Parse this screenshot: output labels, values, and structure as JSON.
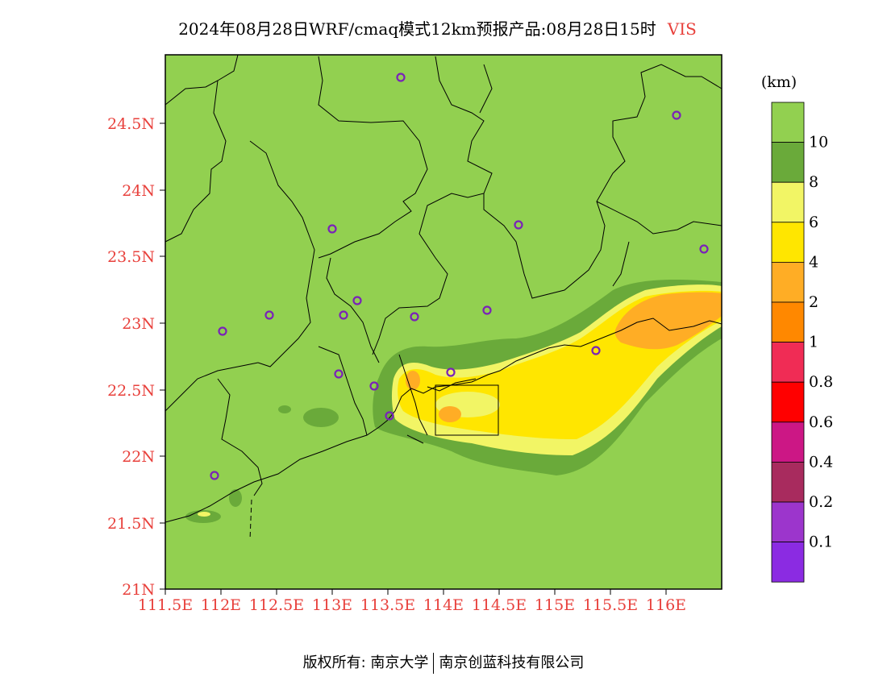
{
  "title": {
    "main": "2024年08月28日WRF/cmaq模式12km预报产品:08月28日15时",
    "variable": "VIS"
  },
  "axes": {
    "lat_ticks": [
      "24.5N",
      "24N",
      "23.5N",
      "23N",
      "22.5N",
      "22N",
      "21.5N",
      "21N"
    ],
    "lon_ticks": [
      "111.5E",
      "112E",
      "112.5E",
      "113E",
      "113.5E",
      "114E",
      "114.5E",
      "115E",
      "115.5E",
      "116E"
    ]
  },
  "colorbar": {
    "unit": "(km)",
    "labels": [
      "10",
      "8",
      "6",
      "4",
      "2",
      "1",
      "0.8",
      "0.6",
      "0.4",
      "0.2",
      "0.1"
    ],
    "colors": [
      "#92d050",
      "#6aaa3a",
      "#f2f565",
      "#ffe600",
      "#ffad25",
      "#ff8800",
      "#f02c55",
      "#ff0000",
      "#cc1785",
      "#a82b5e",
      "#9c35cc",
      "#8b2be2"
    ]
  },
  "footer": {
    "left": "版权所有: 南京大学",
    "right": "南京创蓝科技有限公司"
  },
  "colors": {
    "background_visibility": "#92d050",
    "station_marker": "#7a22b8",
    "axis_label": "#e8413c"
  }
}
